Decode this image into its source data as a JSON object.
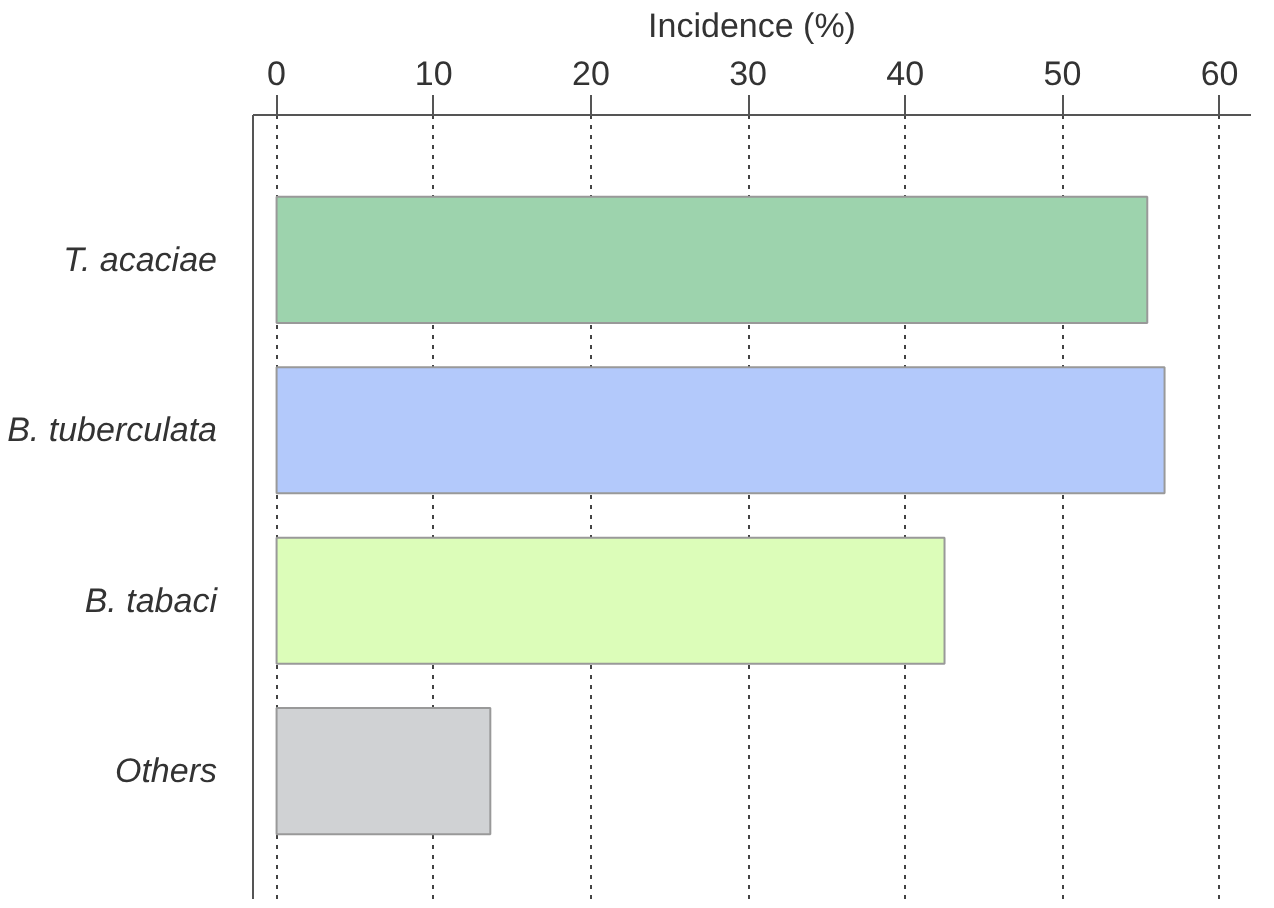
{
  "chart_data": {
    "type": "bar",
    "orientation": "horizontal",
    "xlabel": "Incidence (%)",
    "categories": [
      "T. acaciae",
      "B. tuberculata",
      "B. tabaci",
      "Others"
    ],
    "values": [
      55.4,
      56.5,
      42.5,
      13.6
    ],
    "colors": [
      "#9dd3ad",
      "#b3c9fb",
      "#dcfdb9",
      "#d0d2d4"
    ],
    "xlim": [
      -1.5,
      62
    ],
    "xticks": [
      0,
      10,
      20,
      30,
      40,
      50,
      60
    ],
    "grid": "x"
  }
}
